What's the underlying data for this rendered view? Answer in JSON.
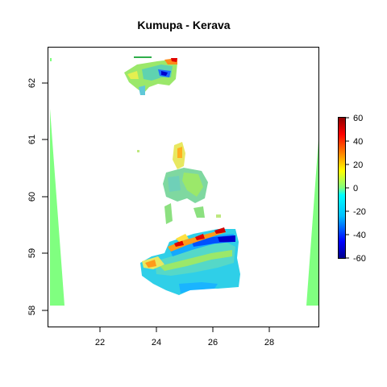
{
  "title": "Kumupa - Kerava",
  "chart_data": {
    "type": "heatmap",
    "title": "Kumupa - Kerava",
    "xlabel": "",
    "ylabel": "",
    "x_ticks": [
      "22",
      "24",
      "26",
      "28"
    ],
    "y_ticks": [
      "58",
      "59",
      "60",
      "61",
      "62"
    ],
    "xlim": [
      20.0,
      29.8
    ],
    "ylim": [
      57.75,
      62.65
    ],
    "colorbar": {
      "ticks": [
        "60",
        "40",
        "20",
        "0",
        "-20",
        "-40",
        "-60"
      ],
      "range": [
        -60,
        60
      ],
      "colors": [
        "#00008b",
        "#0000ff",
        "#00bfff",
        "#00ffff",
        "#7fff7f",
        "#ffff00",
        "#ff7f00",
        "#ff0000",
        "#8b0000"
      ]
    },
    "fill_color": "#80ff80"
  }
}
